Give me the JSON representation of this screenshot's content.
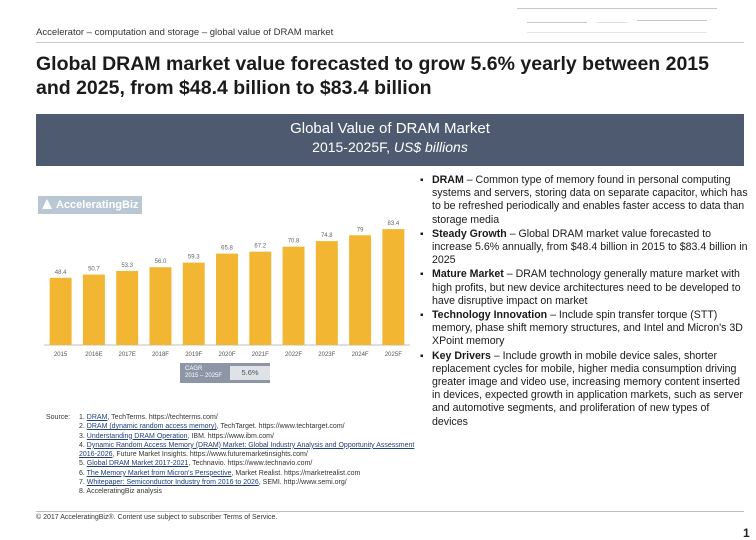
{
  "header": {
    "breadcrumb": "Accelerator – computation and storage – global value of DRAM market",
    "title": "Global DRAM market value forecasted to grow 5.6% yearly between 2015 and 2025, from $48.4 billion to $83.4 billion"
  },
  "banner": {
    "line1": "Global Value of DRAM Market",
    "line2_prefix": "2015-2025F, ",
    "line2_units": "US$ billions"
  },
  "logo": {
    "text": "AcceleratingBiz"
  },
  "colors": {
    "bar": "#f2b632",
    "banner": "#4e5a6f",
    "axis": "#bfbfbf"
  },
  "chart_data": {
    "type": "bar",
    "title": "Global Value of DRAM Market",
    "subtitle": "2015-2025F, US$ billions",
    "categories": [
      "2015",
      "2016E",
      "2017E",
      "2018F",
      "2019F",
      "2020F",
      "2021F",
      "2022F",
      "2023F",
      "2024F",
      "2025F"
    ],
    "values": [
      48.4,
      50.7,
      53.3,
      56.0,
      59.3,
      65.8,
      67.2,
      70.8,
      74.8,
      79.0,
      83.4
    ],
    "value_labels": [
      "48.4",
      "50.7",
      "53.3",
      "56.0",
      "59.3",
      "65.8",
      "67.2",
      "70.8",
      "74.8",
      "79",
      "83.4"
    ],
    "ylim": [
      0,
      90
    ],
    "grid": false,
    "annotation": {
      "label_line1": "CAGR",
      "label_line2": "2015 – 2025F",
      "value": "5.6%"
    }
  },
  "sources": {
    "label": "Source:",
    "items": [
      {
        "n": "1. ",
        "link": "DRAM",
        "text": ", TechTerms. https://techterms.com/"
      },
      {
        "n": "2. ",
        "link": "DRAM (dynamic random access memory)",
        "text": ", TechTarget. https://www.techtarget.com/"
      },
      {
        "n": "3. ",
        "link": "Understanding DRAM Operation",
        "text": ", IBM. https://www.ibm.com/"
      },
      {
        "n": "4. ",
        "link": "Dynamic Random Access Memory (DRAM) Market: Global Industry Analysis and Opportunity Assessment 2016-2026",
        "text": ", Future Market Insights. https://www.futuremarketinsights.com/"
      },
      {
        "n": "5. ",
        "link": "Global DRAM Market 2017-2021",
        "text": ", Technavio. https://www.technavio.com/"
      },
      {
        "n": "6. ",
        "link": "The Memory Market from Micron's Perspective",
        "text": ", Market Realist. https://marketrealist.com"
      },
      {
        "n": "7. ",
        "link": "Whitepaper: Semiconductor Industry from 2016 to 2026",
        "text": ", SEMI. http://www.semi.org/"
      },
      {
        "n": "8. ",
        "link": "",
        "text": "AcceleratingBiz analysis"
      }
    ]
  },
  "bullets": [
    {
      "term": "DRAM",
      "text": " – Common type of memory found in personal computing systems and servers, storing data on separate capacitor, which has to be refreshed periodically and enables faster access to data than storage media"
    },
    {
      "term": "Steady Growth",
      "text": " – Global DRAM market value forecasted to increase 5.6% annually, from $48.4 billion in 2015 to $83.4 billion in 2025"
    },
    {
      "term": "Mature Market",
      "text": " – DRAM technology generally mature market with high profits, but new device architectures need to be developed to have disruptive impact on market"
    },
    {
      "term": "Technology Innovation",
      "text": " – Include spin transfer torque (STT) memory, phase shift memory structures, and Intel and Micron's 3D XPoint memory"
    },
    {
      "term": "Key Drivers",
      "text": " – Include growth in mobile device sales, shorter replacement cycles for mobile, higher media consumption driving greater image and video use, increasing memory content inserted in devices, expected growth in application markets, such as server and automotive segments, and proliferation of new types of devices"
    }
  ],
  "footer": {
    "text": "© 2017 AcceleratingBiz®. Content use subject to subscriber Terms of Service."
  },
  "page_number": "1"
}
